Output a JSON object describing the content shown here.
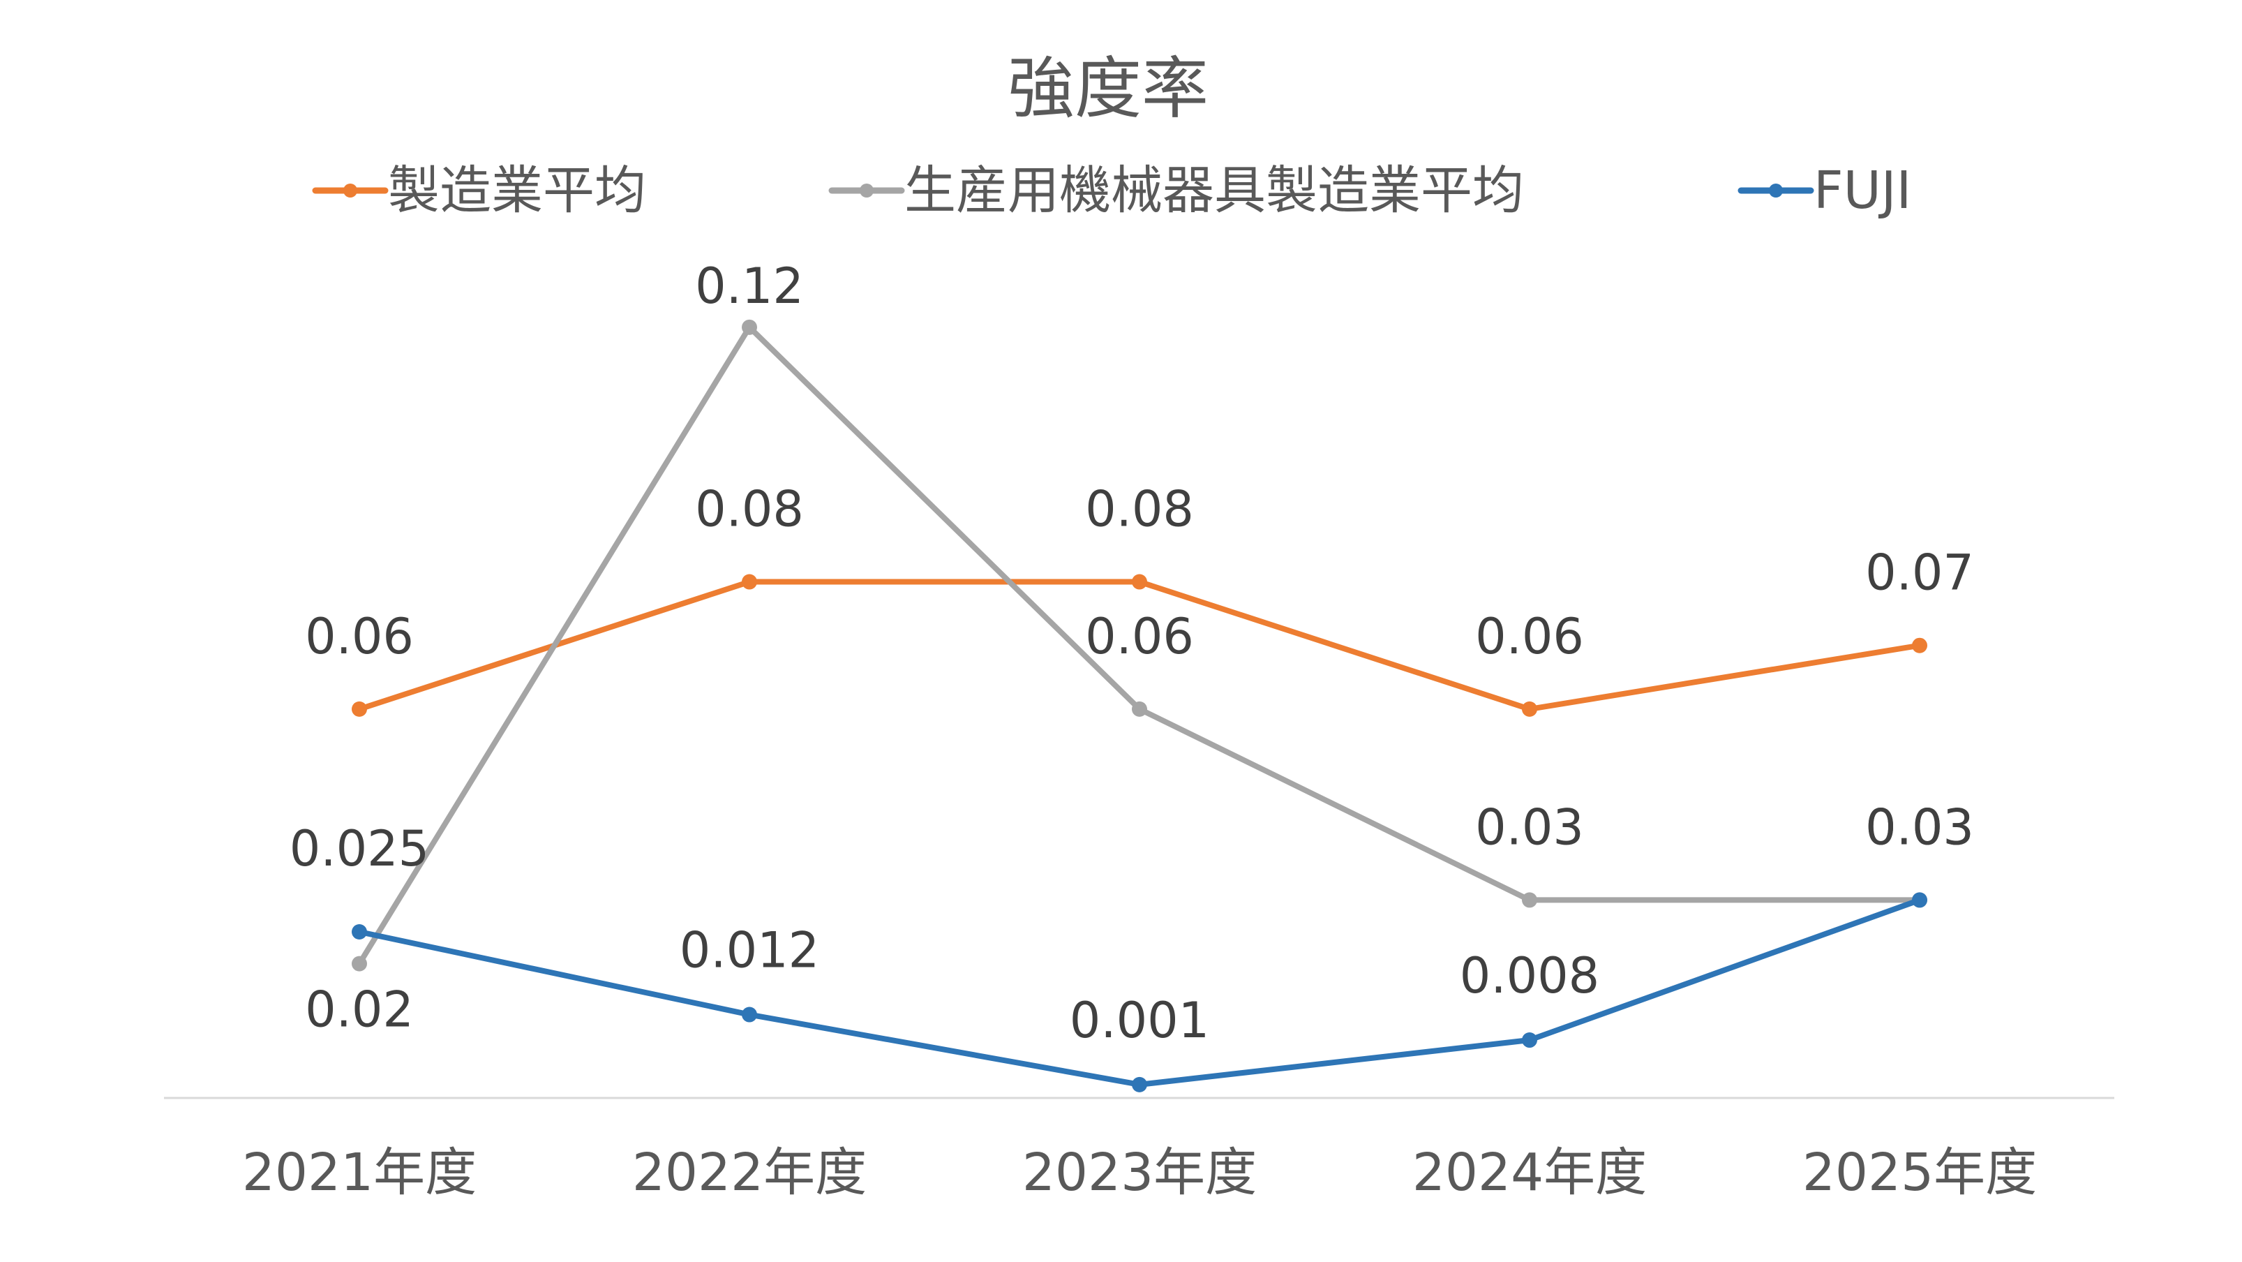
{
  "chart_data": {
    "type": "line",
    "title": "強度率",
    "xlabel": "",
    "ylabel": "",
    "categories": [
      "2021年度",
      "2022年度",
      "2023年度",
      "2024年度",
      "2025年度"
    ],
    "series": [
      {
        "name": "製造業平均",
        "color": "#ED7D31",
        "values": [
          0.06,
          0.08,
          0.08,
          0.06,
          0.07
        ],
        "labels": [
          "0.06",
          "0.08",
          "0.08",
          "0.06",
          "0.07"
        ]
      },
      {
        "name": "生産用機械器具製造業平均",
        "color": "#A5A5A5",
        "values": [
          0.02,
          0.12,
          0.06,
          0.03,
          0.03
        ],
        "labels": [
          "0.02",
          "0.12",
          "0.06",
          "0.03",
          "0.03"
        ]
      },
      {
        "name": "FUJI",
        "color": "#2E75B6",
        "values": [
          0.025,
          0.012,
          0.001,
          0.008,
          0.03
        ],
        "labels": [
          "0.025",
          "0.012",
          "0.001",
          "0.008",
          "0.03"
        ]
      }
    ],
    "ylim": [
      -0.0011,
      0.127
    ],
    "grid": false,
    "legend_position": "top"
  }
}
